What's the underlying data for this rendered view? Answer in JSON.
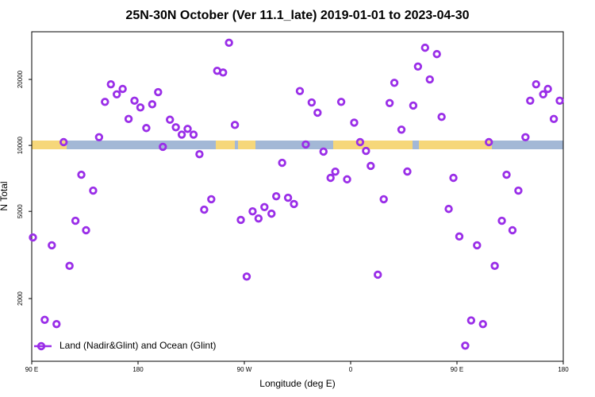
{
  "chart_data": {
    "type": "scatter",
    "title": "25N-30N October (Ver 11.1_late)   2019-01-01 to 2023-04-30",
    "xlabel": "Longitude (deg E)",
    "ylabel": "N Total",
    "xlim": [
      90,
      540
    ],
    "xticks": [
      {
        "value": 90,
        "label": "90 E"
      },
      {
        "value": 180,
        "label": "180"
      },
      {
        "value": 270,
        "label": "90 W"
      },
      {
        "value": 360,
        "label": "0"
      },
      {
        "value": 450,
        "label": "90 E"
      },
      {
        "value": 540,
        "label": "180"
      }
    ],
    "ylim": [
      1035,
      33000
    ],
    "yticks": [
      2000,
      5000,
      10000,
      20000
    ],
    "ylog": true,
    "legend": "lower left",
    "series": [
      {
        "name": "Land (Nadir&Glint) and Ocean (Glint)",
        "color": "#9a2ee8",
        "x": [
          91,
          101,
          107,
          111,
          117,
          122,
          127,
          132,
          136,
          142,
          147,
          152,
          157,
          162,
          167,
          172,
          177,
          182,
          187,
          192,
          197,
          201,
          207,
          212,
          217,
          222,
          227,
          232,
          236,
          242,
          247,
          252,
          257,
          262,
          267,
          272,
          277,
          282,
          287,
          293,
          297,
          302,
          307,
          312,
          317,
          322,
          327,
          332,
          337,
          343,
          347,
          352,
          357,
          363,
          368,
          373,
          377,
          383,
          388,
          393,
          397,
          403,
          408,
          413,
          417,
          423,
          427,
          433,
          437,
          443,
          447,
          452,
          457,
          462,
          467,
          472,
          477,
          482,
          488,
          492,
          497,
          502,
          508,
          512,
          517,
          523,
          527,
          532,
          537
        ],
        "values": [
          3800,
          1600,
          3500,
          1530,
          10350,
          2820,
          4530,
          7350,
          4100,
          6220,
          10900,
          15800,
          19000,
          17100,
          18100,
          13200,
          16000,
          14900,
          12000,
          15400,
          17500,
          9850,
          13100,
          12100,
          11200,
          11900,
          11200,
          9120,
          5090,
          5680,
          21900,
          21500,
          29400,
          12400,
          4570,
          2520,
          5000,
          4640,
          5230,
          4880,
          5860,
          8330,
          5770,
          5400,
          17700,
          10100,
          15700,
          14100,
          9370,
          7110,
          7590,
          15800,
          7000,
          12700,
          10350,
          9440,
          8060,
          2570,
          5680,
          15600,
          19300,
          11800,
          7600,
          15200,
          22900,
          27900,
          20000,
          26100,
          13500,
          5130,
          7110,
          3840,
          1220,
          1590,
          3500,
          1530,
          10350,
          2820,
          4530,
          7350,
          4100,
          6220,
          10900,
          16000,
          19000,
          17100,
          18100,
          13200,
          16000
        ]
      }
    ]
  }
}
